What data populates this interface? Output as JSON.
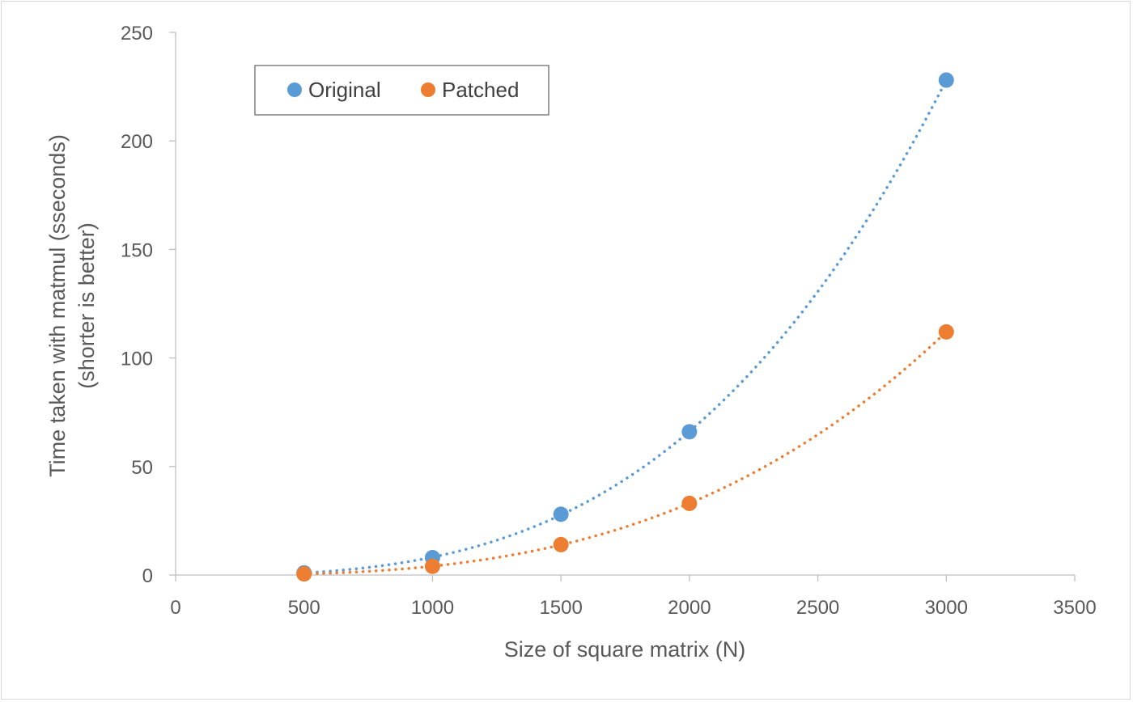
{
  "chart_data": {
    "type": "scatter",
    "xlabel": "Size of square matrix (N)",
    "ylabel_lines": [
      "Time taken with matmul (sseconds)",
      "(shorter is better)"
    ],
    "xlim": [
      0,
      3500
    ],
    "ylim": [
      0,
      250
    ],
    "x_ticks": [
      0,
      500,
      1000,
      1500,
      2000,
      2500,
      3000,
      3500
    ],
    "y_ticks": [
      0,
      50,
      100,
      150,
      200,
      250
    ],
    "grid": false,
    "legend_position": "top-left",
    "trendline": "polynomial, dotted",
    "series": [
      {
        "name": "Original",
        "color": "#5B9BD5",
        "x": [
          500,
          1000,
          1500,
          2000,
          3000
        ],
        "y": [
          1,
          8,
          28,
          66,
          228
        ]
      },
      {
        "name": "Patched",
        "color": "#ED7D31",
        "x": [
          500,
          1000,
          1500,
          2000,
          3000
        ],
        "y": [
          0.5,
          4,
          14,
          33,
          112
        ]
      }
    ]
  }
}
